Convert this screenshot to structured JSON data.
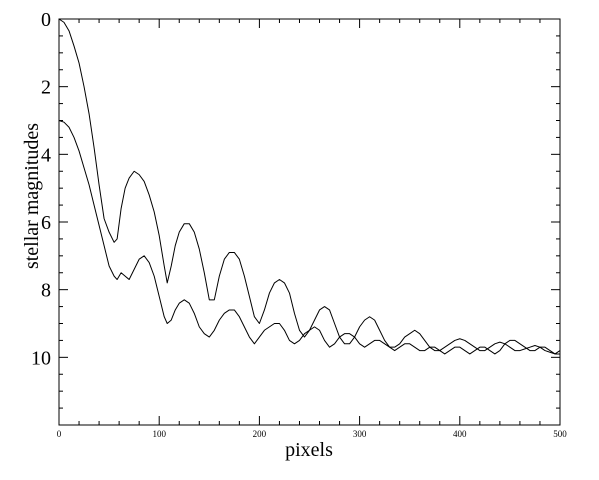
{
  "chart_data": {
    "type": "line",
    "title": "",
    "xlabel": "pixels",
    "ylabel": "stellar magnitudes",
    "xlim": [
      0,
      500
    ],
    "ylim": [
      12,
      0
    ],
    "y_inverted": true,
    "x_ticks": [
      0,
      100,
      200,
      300,
      400,
      500
    ],
    "x_tick_labels": [
      "0",
      "100",
      "200",
      "300",
      "400",
      "500"
    ],
    "y_ticks": [
      0,
      2,
      4,
      6,
      8,
      10
    ],
    "y_tick_labels": [
      "0",
      "2",
      "4",
      "6",
      "8",
      "10"
    ],
    "grid": false,
    "line_color": "#000000",
    "series": [
      {
        "x": [
          0,
          5,
          10,
          15,
          20,
          25,
          30,
          35,
          40,
          45,
          50,
          55,
          58,
          62,
          66,
          70,
          75,
          80,
          85,
          90,
          95,
          100,
          105,
          108,
          112,
          116,
          120,
          125,
          130,
          135,
          140,
          145,
          150,
          155,
          160,
          165,
          170,
          175,
          180,
          185,
          190,
          195,
          200,
          205,
          210,
          215,
          220,
          225,
          230,
          235,
          240,
          245,
          250,
          255,
          260,
          265,
          270,
          275,
          280,
          285,
          290,
          295,
          300,
          305,
          310,
          315,
          320,
          325,
          330,
          335,
          340,
          345,
          350,
          355,
          360,
          365,
          370,
          375,
          380,
          385,
          390,
          395,
          400,
          405,
          410,
          415,
          420,
          425,
          430,
          435,
          440,
          445,
          450,
          455,
          460,
          465,
          470,
          475,
          480,
          485,
          490,
          495,
          500
        ],
        "y": [
          0.0,
          0.1,
          0.35,
          0.8,
          1.3,
          2.0,
          2.8,
          3.8,
          4.9,
          5.9,
          6.3,
          6.6,
          6.5,
          5.6,
          5.0,
          4.7,
          4.5,
          4.6,
          4.8,
          5.2,
          5.7,
          6.4,
          7.3,
          7.8,
          7.3,
          6.7,
          6.3,
          6.05,
          6.05,
          6.3,
          6.8,
          7.5,
          8.3,
          8.3,
          7.6,
          7.1,
          6.9,
          6.9,
          7.1,
          7.6,
          8.2,
          8.8,
          9.0,
          8.6,
          8.1,
          7.8,
          7.7,
          7.8,
          8.1,
          8.7,
          9.2,
          9.4,
          9.2,
          8.9,
          8.6,
          8.5,
          8.6,
          9.0,
          9.4,
          9.6,
          9.6,
          9.4,
          9.1,
          8.9,
          8.8,
          8.9,
          9.2,
          9.5,
          9.7,
          9.7,
          9.6,
          9.4,
          9.3,
          9.2,
          9.3,
          9.5,
          9.7,
          9.8,
          9.8,
          9.7,
          9.6,
          9.5,
          9.45,
          9.5,
          9.6,
          9.7,
          9.8,
          9.8,
          9.7,
          9.6,
          9.55,
          9.6,
          9.7,
          9.8,
          9.8,
          9.75,
          9.7,
          9.65,
          9.7,
          9.8,
          9.85,
          9.9,
          9.9
        ]
      },
      {
        "x": [
          0,
          5,
          10,
          15,
          20,
          25,
          30,
          35,
          40,
          45,
          50,
          55,
          58,
          62,
          66,
          70,
          75,
          80,
          85,
          90,
          95,
          100,
          105,
          108,
          112,
          116,
          120,
          125,
          130,
          135,
          140,
          145,
          150,
          155,
          160,
          165,
          170,
          175,
          180,
          185,
          190,
          195,
          200,
          205,
          210,
          215,
          220,
          225,
          230,
          235,
          240,
          245,
          250,
          255,
          260,
          265,
          270,
          275,
          280,
          285,
          290,
          295,
          300,
          305,
          310,
          315,
          320,
          325,
          330,
          335,
          340,
          345,
          350,
          355,
          360,
          365,
          370,
          375,
          380,
          385,
          390,
          395,
          400,
          405,
          410,
          415,
          420,
          425,
          430,
          435,
          440,
          445,
          450,
          455,
          460,
          465,
          470,
          475,
          480,
          485,
          490,
          495,
          500
        ],
        "y": [
          3.0,
          3.05,
          3.2,
          3.5,
          3.9,
          4.4,
          4.9,
          5.5,
          6.1,
          6.7,
          7.3,
          7.6,
          7.7,
          7.5,
          7.6,
          7.7,
          7.4,
          7.1,
          7.0,
          7.2,
          7.6,
          8.2,
          8.8,
          9.0,
          8.9,
          8.6,
          8.4,
          8.3,
          8.4,
          8.7,
          9.1,
          9.3,
          9.4,
          9.2,
          8.9,
          8.7,
          8.6,
          8.6,
          8.8,
          9.1,
          9.4,
          9.6,
          9.4,
          9.2,
          9.1,
          9.0,
          9.0,
          9.2,
          9.5,
          9.6,
          9.5,
          9.3,
          9.2,
          9.1,
          9.2,
          9.5,
          9.7,
          9.6,
          9.4,
          9.3,
          9.3,
          9.4,
          9.6,
          9.7,
          9.6,
          9.5,
          9.5,
          9.6,
          9.7,
          9.8,
          9.7,
          9.6,
          9.6,
          9.7,
          9.8,
          9.8,
          9.7,
          9.7,
          9.8,
          9.9,
          9.8,
          9.7,
          9.7,
          9.8,
          9.9,
          9.8,
          9.7,
          9.7,
          9.8,
          9.9,
          9.8,
          9.6,
          9.5,
          9.5,
          9.6,
          9.7,
          9.8,
          9.8,
          9.7,
          9.7,
          9.8,
          9.9,
          9.8
        ]
      }
    ]
  }
}
